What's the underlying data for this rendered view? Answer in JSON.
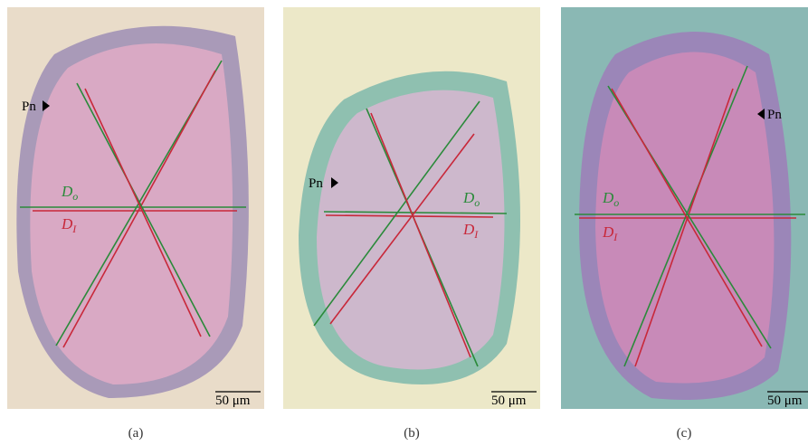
{
  "panels": [
    {
      "pointer": "Pn",
      "outer": {
        "main": "D",
        "sub": "o"
      },
      "inner": {
        "main": "D",
        "sub": "I"
      },
      "scale_bar": "50 μm",
      "caption": "(a)"
    },
    {
      "pointer": "Pn",
      "outer": {
        "main": "D",
        "sub": "o"
      },
      "inner": {
        "main": "D",
        "sub": "I"
      },
      "scale_bar": "50 μm",
      "caption": "(b)"
    },
    {
      "pointer": "Pn",
      "outer": {
        "main": "D",
        "sub": "o"
      },
      "inner": {
        "main": "D",
        "sub": "I"
      },
      "scale_bar": "50 μm",
      "caption": "(c)"
    }
  ]
}
